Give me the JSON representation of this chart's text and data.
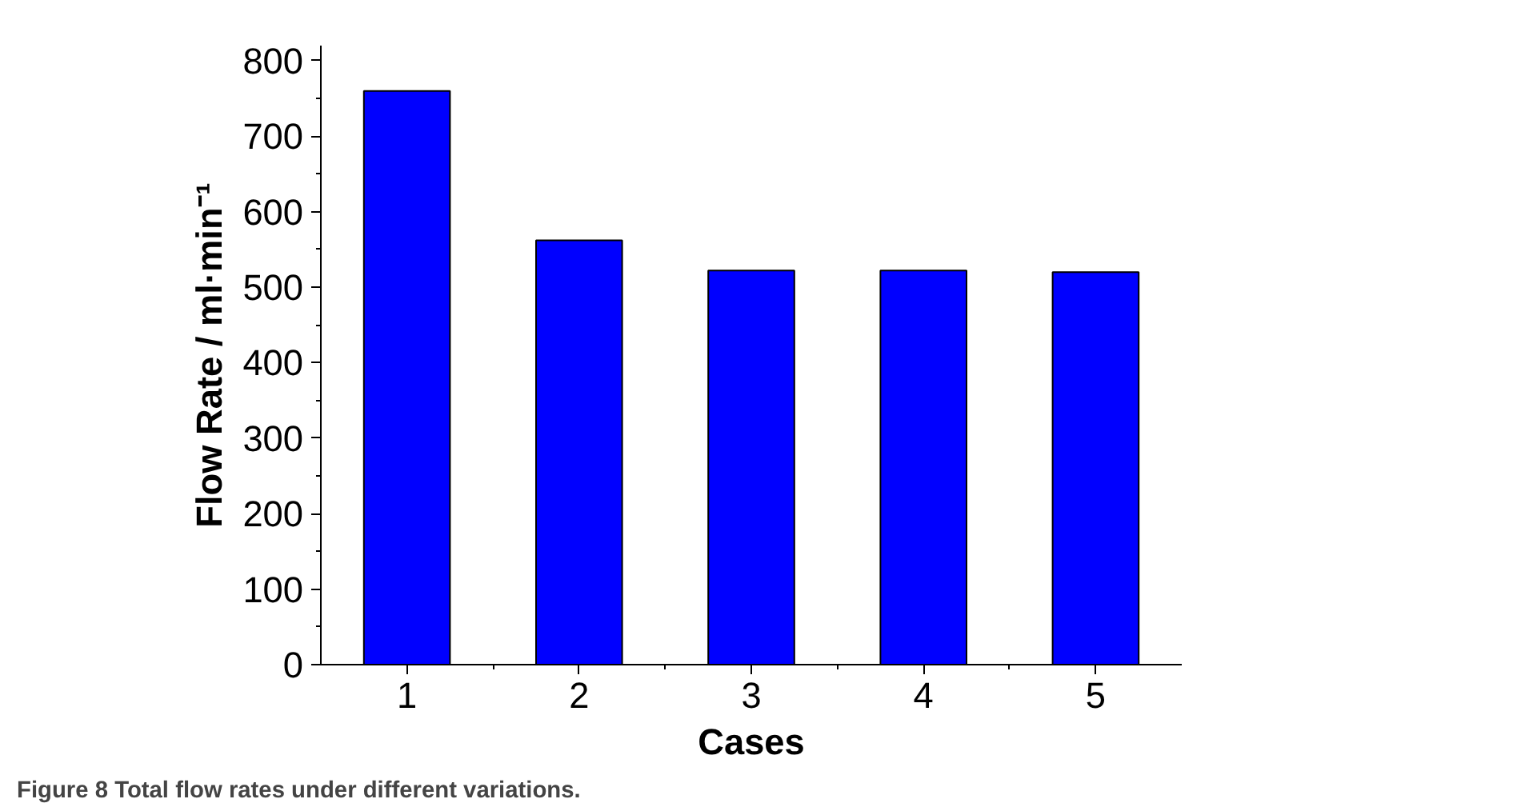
{
  "chart_data": {
    "type": "bar",
    "categories": [
      "1",
      "2",
      "3",
      "4",
      "5"
    ],
    "values": [
      760,
      562,
      522,
      522,
      520
    ],
    "color": "#0000ff",
    "xlabel": "Cases",
    "ylabel": "Flow Rate / ml·min⁻¹",
    "ylim": [
      0,
      820
    ],
    "yticks": [
      0,
      100,
      200,
      300,
      400,
      500,
      600,
      700,
      800
    ],
    "grid": false,
    "annotations": [
      "Figure 8 Total flow rates under different variations."
    ]
  }
}
